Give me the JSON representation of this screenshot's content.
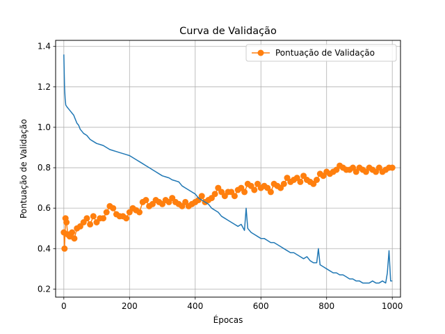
{
  "chart_data": {
    "type": "line",
    "title": "Curva de Validação",
    "xlabel": "Épocas",
    "ylabel": "Pontuação de Validação",
    "xlim": [
      -25,
      1025
    ],
    "ylim": [
      0.16,
      1.43
    ],
    "xticks": [
      0,
      200,
      400,
      600,
      800,
      1000
    ],
    "yticks": [
      0.2,
      0.4,
      0.6,
      0.8,
      1.0,
      1.2,
      1.4
    ],
    "grid": true,
    "legend_position": "top-right",
    "series": [
      {
        "name": "Pontuação de Validação",
        "color": "#ff7f0e",
        "marker": "circle",
        "in_legend": true,
        "points": [
          [
            0,
            0.48
          ],
          [
            2,
            0.4
          ],
          [
            5,
            0.55
          ],
          [
            8,
            0.53
          ],
          [
            12,
            0.47
          ],
          [
            18,
            0.46
          ],
          [
            25,
            0.48
          ],
          [
            32,
            0.45
          ],
          [
            40,
            0.5
          ],
          [
            50,
            0.51
          ],
          [
            60,
            0.53
          ],
          [
            70,
            0.55
          ],
          [
            80,
            0.52
          ],
          [
            90,
            0.56
          ],
          [
            100,
            0.53
          ],
          [
            110,
            0.55
          ],
          [
            120,
            0.55
          ],
          [
            130,
            0.58
          ],
          [
            140,
            0.61
          ],
          [
            150,
            0.6
          ],
          [
            160,
            0.57
          ],
          [
            170,
            0.56
          ],
          [
            180,
            0.56
          ],
          [
            190,
            0.55
          ],
          [
            200,
            0.58
          ],
          [
            210,
            0.6
          ],
          [
            220,
            0.59
          ],
          [
            230,
            0.58
          ],
          [
            240,
            0.63
          ],
          [
            250,
            0.64
          ],
          [
            260,
            0.61
          ],
          [
            270,
            0.62
          ],
          [
            280,
            0.64
          ],
          [
            290,
            0.63
          ],
          [
            300,
            0.62
          ],
          [
            310,
            0.64
          ],
          [
            320,
            0.63
          ],
          [
            330,
            0.65
          ],
          [
            340,
            0.63
          ],
          [
            350,
            0.62
          ],
          [
            360,
            0.61
          ],
          [
            370,
            0.63
          ],
          [
            380,
            0.61
          ],
          [
            390,
            0.62
          ],
          [
            400,
            0.63
          ],
          [
            410,
            0.64
          ],
          [
            420,
            0.66
          ],
          [
            430,
            0.63
          ],
          [
            440,
            0.64
          ],
          [
            450,
            0.65
          ],
          [
            460,
            0.67
          ],
          [
            470,
            0.7
          ],
          [
            480,
            0.68
          ],
          [
            490,
            0.66
          ],
          [
            500,
            0.68
          ],
          [
            510,
            0.68
          ],
          [
            520,
            0.66
          ],
          [
            530,
            0.69
          ],
          [
            540,
            0.7
          ],
          [
            550,
            0.68
          ],
          [
            560,
            0.72
          ],
          [
            570,
            0.71
          ],
          [
            580,
            0.69
          ],
          [
            590,
            0.72
          ],
          [
            600,
            0.7
          ],
          [
            610,
            0.71
          ],
          [
            620,
            0.7
          ],
          [
            630,
            0.68
          ],
          [
            640,
            0.72
          ],
          [
            650,
            0.71
          ],
          [
            660,
            0.7
          ],
          [
            670,
            0.72
          ],
          [
            680,
            0.75
          ],
          [
            690,
            0.73
          ],
          [
            700,
            0.74
          ],
          [
            710,
            0.75
          ],
          [
            720,
            0.73
          ],
          [
            730,
            0.76
          ],
          [
            740,
            0.74
          ],
          [
            750,
            0.73
          ],
          [
            760,
            0.72
          ],
          [
            770,
            0.74
          ],
          [
            780,
            0.77
          ],
          [
            790,
            0.76
          ],
          [
            800,
            0.78
          ],
          [
            810,
            0.77
          ],
          [
            820,
            0.78
          ],
          [
            830,
            0.79
          ],
          [
            840,
            0.81
          ],
          [
            850,
            0.8
          ],
          [
            860,
            0.79
          ],
          [
            870,
            0.79
          ],
          [
            880,
            0.8
          ],
          [
            890,
            0.78
          ],
          [
            900,
            0.8
          ],
          [
            910,
            0.79
          ],
          [
            920,
            0.78
          ],
          [
            930,
            0.8
          ],
          [
            940,
            0.79
          ],
          [
            950,
            0.78
          ],
          [
            960,
            0.8
          ],
          [
            970,
            0.78
          ],
          [
            980,
            0.79
          ],
          [
            990,
            0.8
          ],
          [
            1000,
            0.8
          ]
        ]
      },
      {
        "name": "",
        "color": "#1f77b4",
        "marker": "none",
        "in_legend": false,
        "points": [
          [
            0,
            1.36
          ],
          [
            2,
            1.2
          ],
          [
            4,
            1.14
          ],
          [
            6,
            1.11
          ],
          [
            10,
            1.1
          ],
          [
            15,
            1.09
          ],
          [
            20,
            1.08
          ],
          [
            25,
            1.07
          ],
          [
            30,
            1.06
          ],
          [
            35,
            1.04
          ],
          [
            40,
            1.02
          ],
          [
            45,
            1.01
          ],
          [
            50,
            0.99
          ],
          [
            55,
            0.98
          ],
          [
            60,
            0.97
          ],
          [
            70,
            0.96
          ],
          [
            80,
            0.94
          ],
          [
            90,
            0.93
          ],
          [
            100,
            0.92
          ],
          [
            110,
            0.915
          ],
          [
            120,
            0.91
          ],
          [
            130,
            0.9
          ],
          [
            140,
            0.89
          ],
          [
            150,
            0.885
          ],
          [
            160,
            0.88
          ],
          [
            170,
            0.875
          ],
          [
            180,
            0.87
          ],
          [
            190,
            0.865
          ],
          [
            200,
            0.86
          ],
          [
            210,
            0.85
          ],
          [
            220,
            0.84
          ],
          [
            230,
            0.83
          ],
          [
            240,
            0.82
          ],
          [
            250,
            0.81
          ],
          [
            260,
            0.8
          ],
          [
            270,
            0.79
          ],
          [
            280,
            0.78
          ],
          [
            290,
            0.77
          ],
          [
            300,
            0.76
          ],
          [
            310,
            0.755
          ],
          [
            320,
            0.75
          ],
          [
            330,
            0.74
          ],
          [
            340,
            0.735
          ],
          [
            350,
            0.73
          ],
          [
            360,
            0.71
          ],
          [
            370,
            0.7
          ],
          [
            380,
            0.69
          ],
          [
            390,
            0.68
          ],
          [
            400,
            0.67
          ],
          [
            410,
            0.65
          ],
          [
            420,
            0.64
          ],
          [
            430,
            0.63
          ],
          [
            440,
            0.62
          ],
          [
            450,
            0.6
          ],
          [
            460,
            0.59
          ],
          [
            470,
            0.58
          ],
          [
            480,
            0.56
          ],
          [
            490,
            0.55
          ],
          [
            500,
            0.54
          ],
          [
            510,
            0.53
          ],
          [
            520,
            0.52
          ],
          [
            530,
            0.51
          ],
          [
            540,
            0.52
          ],
          [
            550,
            0.49
          ],
          [
            555,
            0.6
          ],
          [
            560,
            0.5
          ],
          [
            570,
            0.48
          ],
          [
            580,
            0.47
          ],
          [
            590,
            0.46
          ],
          [
            600,
            0.45
          ],
          [
            610,
            0.45
          ],
          [
            620,
            0.44
          ],
          [
            630,
            0.43
          ],
          [
            640,
            0.43
          ],
          [
            650,
            0.42
          ],
          [
            660,
            0.41
          ],
          [
            670,
            0.4
          ],
          [
            680,
            0.39
          ],
          [
            690,
            0.38
          ],
          [
            700,
            0.38
          ],
          [
            710,
            0.37
          ],
          [
            720,
            0.36
          ],
          [
            730,
            0.35
          ],
          [
            740,
            0.36
          ],
          [
            750,
            0.34
          ],
          [
            760,
            0.33
          ],
          [
            770,
            0.33
          ],
          [
            775,
            0.4
          ],
          [
            780,
            0.32
          ],
          [
            790,
            0.31
          ],
          [
            800,
            0.3
          ],
          [
            810,
            0.29
          ],
          [
            820,
            0.28
          ],
          [
            830,
            0.28
          ],
          [
            840,
            0.27
          ],
          [
            850,
            0.27
          ],
          [
            860,
            0.26
          ],
          [
            870,
            0.25
          ],
          [
            880,
            0.25
          ],
          [
            890,
            0.24
          ],
          [
            900,
            0.24
          ],
          [
            910,
            0.23
          ],
          [
            920,
            0.23
          ],
          [
            930,
            0.23
          ],
          [
            940,
            0.24
          ],
          [
            950,
            0.23
          ],
          [
            960,
            0.23
          ],
          [
            970,
            0.24
          ],
          [
            980,
            0.23
          ],
          [
            985,
            0.28
          ],
          [
            990,
            0.39
          ],
          [
            995,
            0.24
          ],
          [
            1000,
            0.24
          ]
        ]
      }
    ]
  }
}
